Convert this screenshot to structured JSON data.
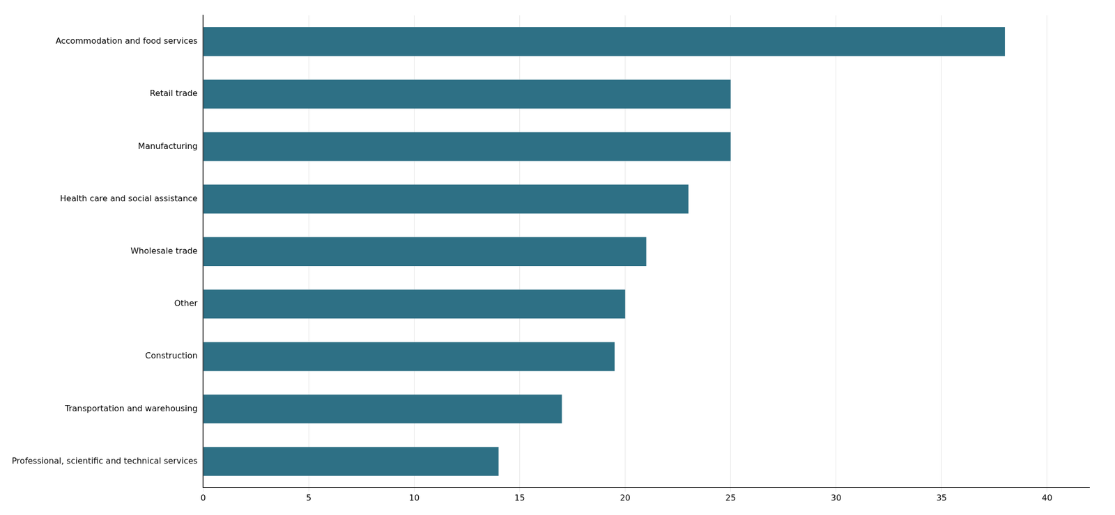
{
  "chart_data": {
    "type": "bar",
    "orientation": "horizontal",
    "categories": [
      "Professional, scientific and technical services",
      "Transportation and warehousing",
      "Construction",
      "Other",
      "Wholesale trade",
      "Health care and social assistance",
      "Manufacturing",
      "Retail trade",
      "Accommodation and food services"
    ],
    "values": [
      14,
      17,
      19.5,
      20,
      21,
      23,
      25,
      25,
      38
    ],
    "color": "#2e7085",
    "xlim": [
      0,
      42
    ],
    "xticks": [
      0,
      5,
      10,
      15,
      20,
      25,
      30,
      35,
      40
    ],
    "grid": true
  }
}
